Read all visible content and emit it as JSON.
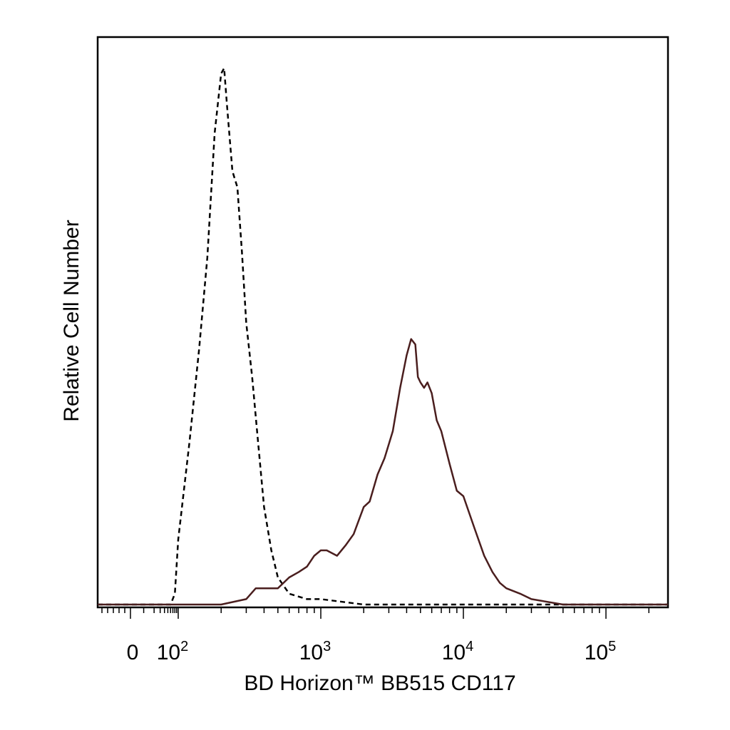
{
  "chart_data": {
    "type": "line",
    "xlabel": "BD Horizon™ BB515 CD117",
    "ylabel": "Relative Cell Number",
    "x_scale": "biexponential",
    "xlim": [
      -60,
      250000
    ],
    "ylim": [
      0,
      1
    ],
    "grid": false,
    "x_tick_labels": [
      {
        "value": 0,
        "base": "0",
        "exp": ""
      },
      {
        "value": 100,
        "base": "10",
        "exp": "2"
      },
      {
        "value": 1000,
        "base": "10",
        "exp": "3"
      },
      {
        "value": 10000,
        "base": "10",
        "exp": "4"
      },
      {
        "value": 100000,
        "base": "10",
        "exp": "5"
      }
    ],
    "series": [
      {
        "style": "dashed",
        "color": "#000000",
        "x": [
          60,
          80,
          100,
          120,
          140,
          160,
          180,
          200,
          210,
          220,
          240,
          260,
          280,
          300,
          330,
          360,
          400,
          450,
          500,
          600,
          800,
          1000,
          2000,
          5000,
          10000,
          30000
        ],
        "y": [
          0.0,
          0.02,
          0.12,
          0.3,
          0.47,
          0.64,
          0.87,
          0.98,
          0.99,
          0.92,
          0.8,
          0.77,
          0.65,
          0.52,
          0.42,
          0.31,
          0.18,
          0.1,
          0.05,
          0.02,
          0.01,
          0.01,
          0.0,
          0.0,
          0.0,
          0.0
        ]
      },
      {
        "style": "solid",
        "color": "#4a1e1e",
        "x": [
          100,
          200,
          300,
          350,
          400,
          500,
          600,
          700,
          800,
          900,
          1000,
          1100,
          1300,
          1500,
          1700,
          2000,
          2200,
          2500,
          2800,
          3200,
          3600,
          4000,
          4300,
          4600,
          4800,
          5000,
          5300,
          5600,
          6000,
          6500,
          7000,
          8000,
          9000,
          10000,
          12000,
          14000,
          16000,
          18000,
          20000,
          25000,
          30000,
          50000,
          100000,
          200000
        ],
        "y": [
          0.0,
          0.0,
          0.01,
          0.03,
          0.03,
          0.03,
          0.05,
          0.06,
          0.07,
          0.09,
          0.1,
          0.1,
          0.09,
          0.11,
          0.13,
          0.18,
          0.19,
          0.24,
          0.27,
          0.32,
          0.4,
          0.46,
          0.49,
          0.48,
          0.42,
          0.41,
          0.4,
          0.41,
          0.39,
          0.34,
          0.32,
          0.26,
          0.21,
          0.2,
          0.14,
          0.09,
          0.06,
          0.04,
          0.03,
          0.02,
          0.01,
          0.0,
          0.0,
          0.0
        ]
      }
    ]
  }
}
